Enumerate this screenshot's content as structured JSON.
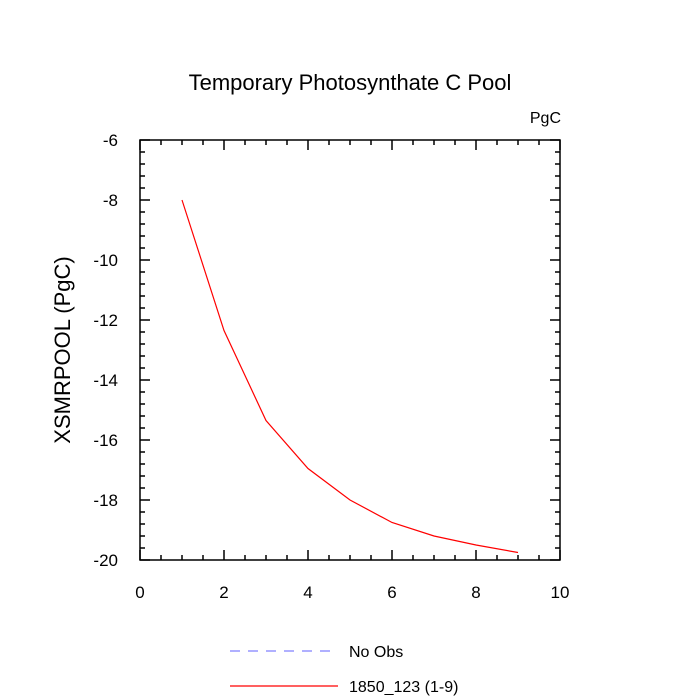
{
  "chart_data": {
    "type": "line",
    "title": "Temporary Photosynthate C Pool",
    "units": "PgC",
    "xlabel": "",
    "ylabel": "XSMRPOOL  (PgC)",
    "xlim": [
      0,
      10
    ],
    "ylim": [
      -20,
      -6
    ],
    "xticks": [
      0,
      2,
      4,
      6,
      8,
      10
    ],
    "xtick_labels": [
      "0",
      "2",
      "4",
      "6",
      "8",
      "10"
    ],
    "yticks": [
      -20,
      -18,
      -16,
      -14,
      -12,
      -10,
      -8,
      -6
    ],
    "ytick_labels": [
      "-20",
      "-18",
      "-16",
      "-14",
      "-12",
      "-10",
      "-8",
      "-6"
    ],
    "grid": false,
    "legend_position": "bottom-center",
    "series": [
      {
        "name": "No Obs",
        "color": "#8080ff",
        "dash": "dashed",
        "x": [],
        "y": []
      },
      {
        "name": "1850_123 (1-9)",
        "color": "#ff0000",
        "dash": "solid",
        "x": [
          1,
          2,
          3,
          4,
          5,
          6,
          7,
          8,
          9
        ],
        "y": [
          -8.0,
          -12.35,
          -15.35,
          -16.95,
          -18.0,
          -18.75,
          -19.2,
          -19.5,
          -19.75
        ]
      }
    ]
  }
}
